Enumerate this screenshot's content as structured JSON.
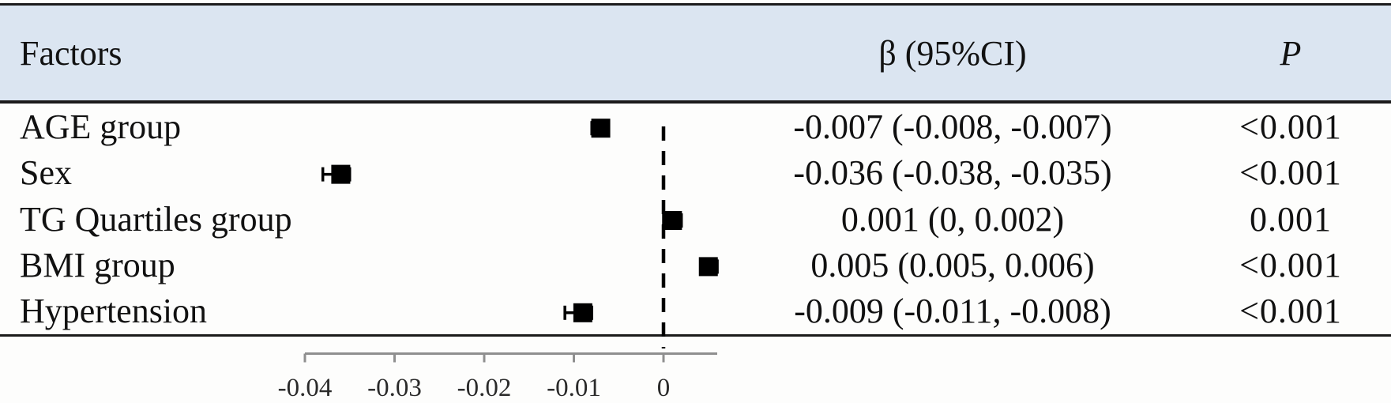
{
  "table": {
    "header": {
      "factors": "Factors",
      "beta_ci": "β (95%CI)",
      "p": "P"
    },
    "rows": [
      {
        "factor": "AGE group",
        "beta_ci": "-0.007 (-0.008, -0.007)",
        "p": "<0.001"
      },
      {
        "factor": "Sex",
        "beta_ci": "-0.036 (-0.038, -0.035)",
        "p": "<0.001"
      },
      {
        "factor": "TG Quartiles group",
        "beta_ci": "0.001 (0, 0.002)",
        "p": "0.001"
      },
      {
        "factor": "BMI group",
        "beta_ci": "0.005 (0.005, 0.006)",
        "p": "<0.001"
      },
      {
        "factor": "Hypertension",
        "beta_ci": "-0.009 (-0.011, -0.008)",
        "p": "<0.001"
      }
    ]
  },
  "chart_data": {
    "type": "forest",
    "title": "",
    "xlabel": "",
    "ylabel": "",
    "categories": [
      "AGE group",
      "Sex",
      "TG Quartiles group",
      "BMI group",
      "Hypertension"
    ],
    "points": [
      {
        "label": "AGE group",
        "beta": -0.007,
        "ci_low": -0.008,
        "ci_high": -0.007,
        "p": "<0.001"
      },
      {
        "label": "Sex",
        "beta": -0.036,
        "ci_low": -0.038,
        "ci_high": -0.035,
        "p": "<0.001"
      },
      {
        "label": "TG Quartiles group",
        "beta": 0.001,
        "ci_low": 0.0,
        "ci_high": 0.002,
        "p": "0.001"
      },
      {
        "label": "BMI group",
        "beta": 0.005,
        "ci_low": 0.005,
        "ci_high": 0.006,
        "p": "<0.001"
      },
      {
        "label": "Hypertension",
        "beta": -0.009,
        "ci_low": -0.011,
        "ci_high": -0.008,
        "p": "<0.001"
      }
    ],
    "x_ticks": [
      -0.04,
      -0.03,
      -0.02,
      -0.01,
      0
    ],
    "x_tick_labels": [
      "-0.04",
      "-0.03",
      "-0.02",
      "-0.01",
      "0"
    ],
    "reference_x": 0,
    "xlim": [
      -0.04,
      0.006
    ],
    "marker": "square",
    "grid": false,
    "legend": false
  },
  "colors": {
    "header_bg": "#dbe5f1",
    "rule": "#1b1b1b",
    "marker": "#000000",
    "reference_line": "#000000",
    "axis": "#8f8f8f",
    "tick_label": "#2a2a2a",
    "text": "#111111"
  }
}
